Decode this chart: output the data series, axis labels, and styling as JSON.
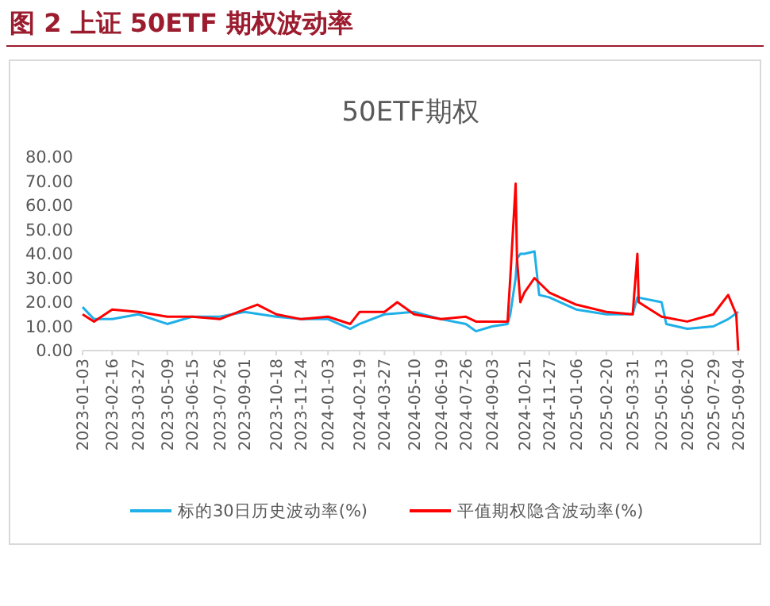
{
  "chart_data": {
    "type": "line",
    "title": "图 2 上证 50ETF 期权波动率",
    "subtitle": "50ETF期权",
    "xlim": [
      "2023-01-03",
      "2025-09-04"
    ],
    "xticks": [
      "2023-01-03",
      "2023-02-16",
      "2023-03-27",
      "2023-05-09",
      "2023-06-15",
      "2023-07-26",
      "2023-09-01",
      "2023-10-18",
      "2023-11-24",
      "2024-01-03",
      "2024-02-19",
      "2024-03-27",
      "2024-05-10",
      "2024-06-19",
      "2024-07-26",
      "2024-09-03",
      "2024-10-21",
      "2024-11-27",
      "2025-01-06",
      "2025-02-20",
      "2025-03-31",
      "2025-05-13",
      "2025-06-20",
      "2025-07-29",
      "2025-09-04"
    ],
    "ylim": [
      0,
      80
    ],
    "yticks": [
      {
        "value": 0,
        "label": "0.00"
      },
      {
        "value": 10,
        "label": "10.00"
      },
      {
        "value": 20,
        "label": "20.00"
      },
      {
        "value": 30,
        "label": "30.00"
      },
      {
        "value": 40,
        "label": "40.00"
      },
      {
        "value": 50,
        "label": "50.00"
      },
      {
        "value": 60,
        "label": "60.00"
      },
      {
        "value": 70,
        "label": "70.00"
      },
      {
        "value": 80,
        "label": "80.00"
      }
    ],
    "grid": false,
    "legend": "bottom",
    "marker": "none",
    "line_style": "solid",
    "series": [
      {
        "name": "标的30日历史波动率(%)",
        "color": "#1fb0e8",
        "x": [
          "2023-01-03",
          "2023-01-20",
          "2023-02-16",
          "2023-03-27",
          "2023-05-09",
          "2023-06-15",
          "2023-07-26",
          "2023-09-01",
          "2023-10-18",
          "2023-11-24",
          "2024-01-03",
          "2024-02-05",
          "2024-02-19",
          "2024-03-27",
          "2024-05-10",
          "2024-06-19",
          "2024-07-26",
          "2024-08-10",
          "2024-09-03",
          "2024-09-26",
          "2024-09-30",
          "2024-10-08",
          "2024-10-10",
          "2024-10-15",
          "2024-10-21",
          "2024-11-05",
          "2024-11-12",
          "2024-11-27",
          "2025-01-06",
          "2025-02-20",
          "2025-03-31",
          "2025-04-07",
          "2025-05-13",
          "2025-05-20",
          "2025-06-20",
          "2025-07-29",
          "2025-08-20",
          "2025-09-04"
        ],
        "values": [
          18,
          13,
          13,
          15,
          11,
          14,
          14,
          16,
          14,
          13,
          13,
          9,
          11,
          15,
          16,
          13,
          11,
          8,
          10,
          11,
          15,
          30,
          38,
          40,
          40,
          41,
          23,
          22,
          17,
          15,
          15,
          22,
          20,
          11,
          9,
          10,
          13,
          16
        ]
      },
      {
        "name": "平值期权隐含波动率(%)",
        "color": "#ff0000",
        "x": [
          "2023-01-03",
          "2023-01-20",
          "2023-02-16",
          "2023-03-27",
          "2023-05-09",
          "2023-06-15",
          "2023-07-26",
          "2023-09-01",
          "2023-09-20",
          "2023-10-18",
          "2023-11-24",
          "2024-01-03",
          "2024-02-05",
          "2024-02-19",
          "2024-03-27",
          "2024-04-15",
          "2024-05-10",
          "2024-06-19",
          "2024-07-26",
          "2024-08-10",
          "2024-09-03",
          "2024-09-26",
          "2024-09-30",
          "2024-10-08",
          "2024-10-10",
          "2024-10-15",
          "2024-10-21",
          "2024-11-05",
          "2024-11-27",
          "2025-01-06",
          "2025-02-20",
          "2025-03-31",
          "2025-04-07",
          "2025-04-09",
          "2025-05-13",
          "2025-06-20",
          "2025-07-29",
          "2025-08-20",
          "2025-09-01",
          "2025-09-04"
        ],
        "values": [
          15,
          12,
          17,
          16,
          14,
          14,
          13,
          17,
          19,
          15,
          13,
          14,
          11,
          16,
          16,
          20,
          15,
          13,
          14,
          12,
          12,
          12,
          30,
          69,
          38,
          20,
          24,
          30,
          24,
          19,
          16,
          15,
          40,
          20,
          14,
          12,
          15,
          23,
          15,
          0
        ]
      }
    ]
  }
}
